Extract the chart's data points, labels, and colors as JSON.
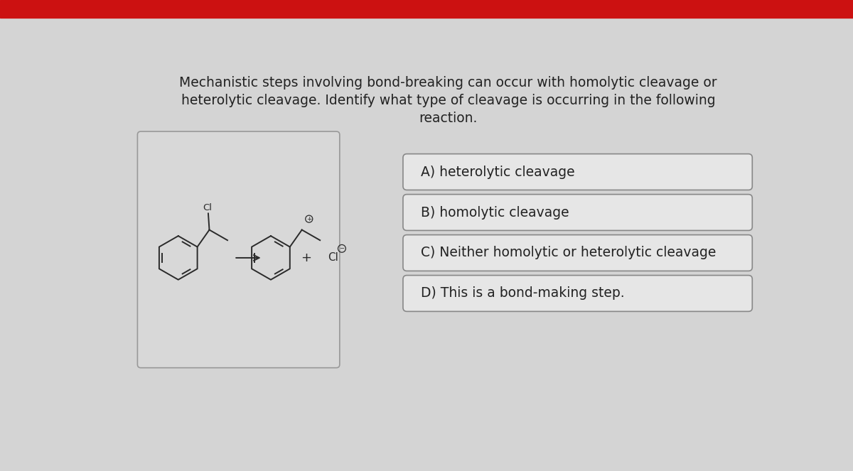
{
  "bg_color": "#d4d4d4",
  "top_bar_color": "#cc1111",
  "question_lines": [
    "Mechanistic steps involving bond-breaking can occur with homolytic cleavage or",
    "heterolytic cleavage. Identify what type of cleavage is occurring in the following",
    "reaction."
  ],
  "answers": [
    "A) heterolytic cleavage",
    "B) homolytic cleavage",
    "C) Neither homolytic or heterolytic cleavage",
    "D) This is a bond-making step."
  ],
  "text_color": "#222222",
  "font_size_question": 13.5,
  "font_size_answer": 13.5,
  "box_facecolor": "#d8d8d8",
  "box_edgecolor": "#999999",
  "answer_facecolor": "#e6e6e6",
  "answer_edgecolor": "#888888"
}
